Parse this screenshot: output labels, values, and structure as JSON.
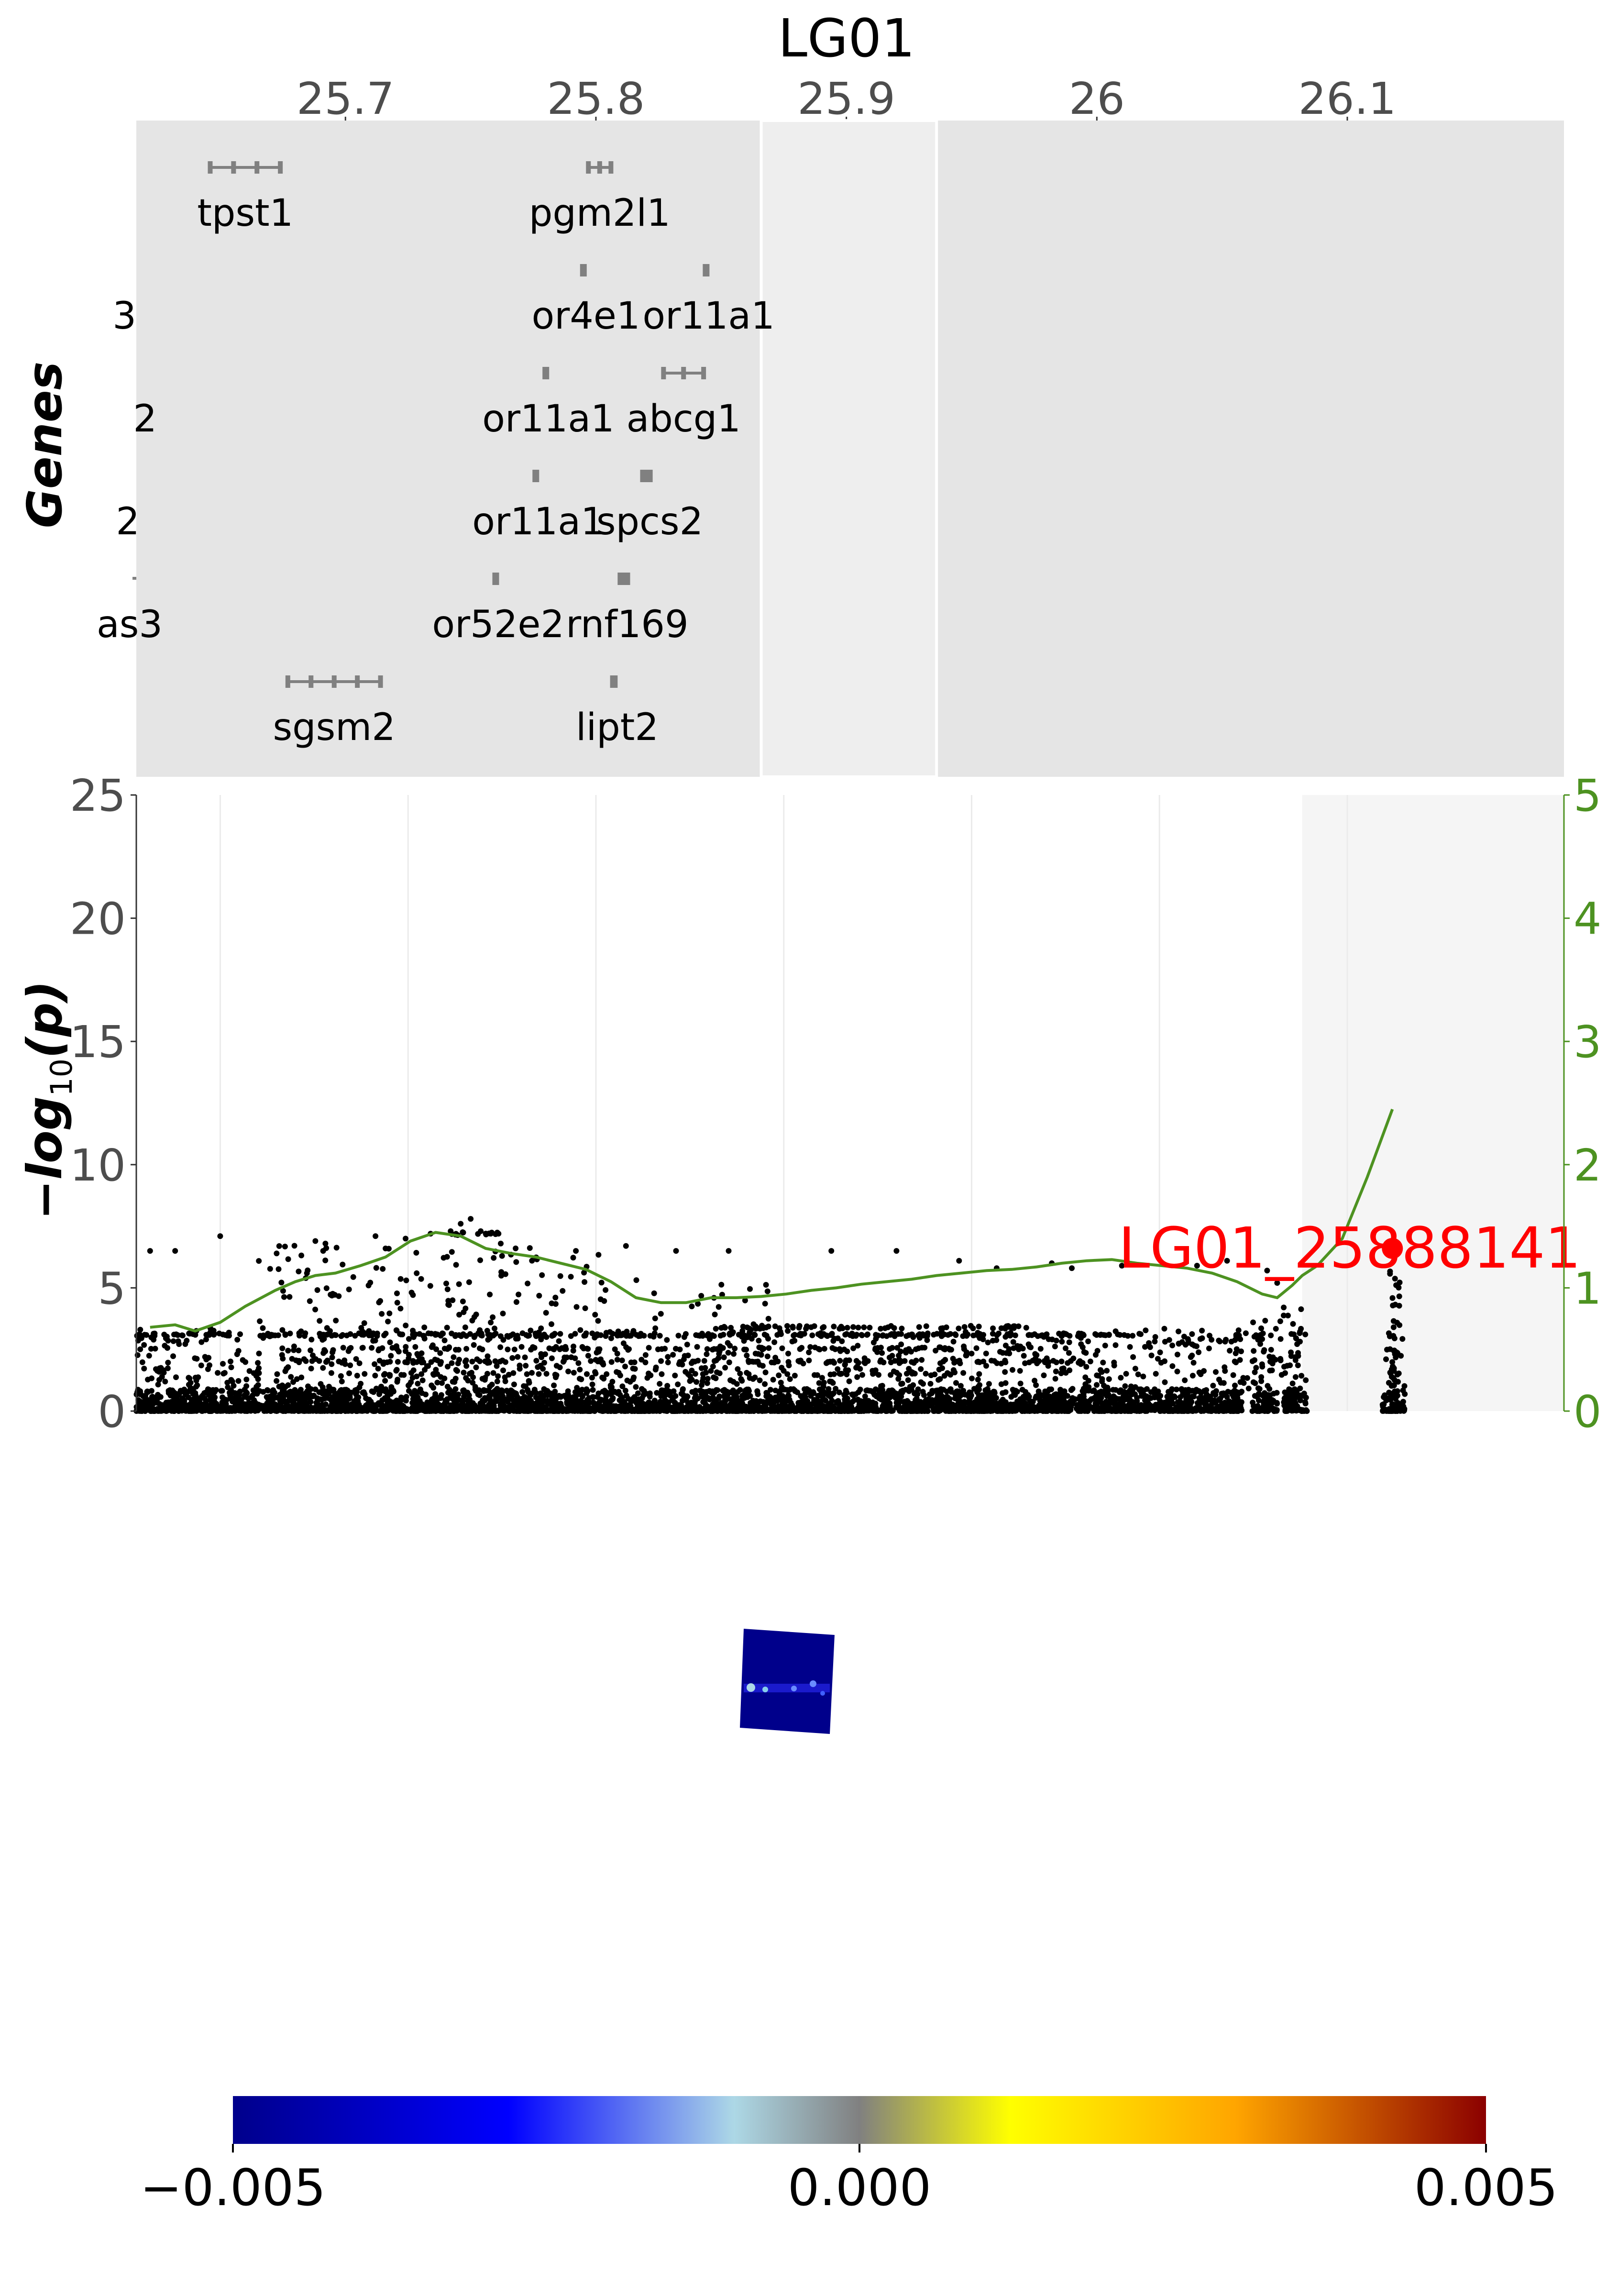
{
  "chart_data": [
    {
      "type": "gene-track",
      "title": "LG01",
      "ylabel": "Genes",
      "x_ticks": [
        "25.7",
        "25.8",
        "25.9",
        "26",
        "26.1"
      ],
      "x_tick_values": [
        25.7,
        25.8,
        25.9,
        26.0,
        26.1
      ],
      "xlim": [
        25.6165,
        26.1865
      ],
      "highlight_range": [
        25.866,
        25.936
      ],
      "genes": [
        {
          "name": "tpst1",
          "row": 0,
          "start": 25.646,
          "end": 25.674
        },
        {
          "name": "pgm2l1",
          "row": 0,
          "start": 25.797,
          "end": 25.806
        },
        {
          "name": "...3",
          "row": 1,
          "start": 25.6,
          "end": 25.605
        },
        {
          "name": "or4e1",
          "row": 1,
          "start": 25.795,
          "end": 25.797
        },
        {
          "name": "or11a1",
          "row": 1,
          "start": 25.844,
          "end": 25.846
        },
        {
          "name": "...2",
          "row": 2,
          "start": 25.6,
          "end": 25.605
        },
        {
          "name": "or11a1",
          "row": 2,
          "start": 25.78,
          "end": 25.782
        },
        {
          "name": "abcg1",
          "row": 2,
          "start": 25.827,
          "end": 25.843
        },
        {
          "name": "...2",
          "row": 3,
          "start": 25.6,
          "end": 25.605
        },
        {
          "name": "or11a1",
          "row": 3,
          "start": 25.776,
          "end": 25.778
        },
        {
          "name": "spcs2",
          "row": 3,
          "start": 25.819,
          "end": 25.824
        },
        {
          "name": "...as3",
          "row": 4,
          "start": 25.6,
          "end": 25.6165
        },
        {
          "name": "or52e2",
          "row": 4,
          "start": 25.76,
          "end": 25.762
        },
        {
          "name": "rnf169",
          "row": 4,
          "start": 25.81,
          "end": 25.815
        },
        {
          "name": "sgsm2",
          "row": 5,
          "start": 25.677,
          "end": 25.714
        },
        {
          "name": "lipt2",
          "row": 5,
          "start": 25.807,
          "end": 25.81
        }
      ],
      "gene_labels_clipped": [
        {
          "text": "3",
          "row": 1
        },
        {
          "text": "2",
          "row": 2
        },
        {
          "text": "2",
          "row": 3
        },
        {
          "text": "as3",
          "row": 4
        }
      ]
    },
    {
      "type": "scatter",
      "ylabel": "−log10(p)",
      "ylabel_parts": {
        "prefix": "−log",
        "sub": "10",
        "suffix": "(p)"
      },
      "ylim": [
        0,
        25
      ],
      "y_ticks": [
        "0",
        "5",
        "10",
        "15",
        "20",
        "25"
      ],
      "y_tick_values": [
        0,
        5,
        10,
        15,
        20,
        25
      ],
      "y2lim": [
        0,
        5
      ],
      "y2_ticks": [
        "0",
        "1",
        "2",
        "3",
        "4",
        "5"
      ],
      "y2_tick_values": [
        0,
        1,
        2,
        3,
        4,
        5
      ],
      "xlim": [
        25.6165,
        26.1865
      ],
      "grid": true,
      "shaded_range": [
        26.082,
        26.1865
      ],
      "lead_snp": {
        "label": "LG01_25888141",
        "x": 26.118,
        "y": 6.6
      },
      "recombination_line": {
        "x": [
          25.622,
          25.632,
          25.64,
          25.65,
          25.66,
          25.672,
          25.68,
          25.688,
          25.696,
          25.706,
          25.716,
          25.726,
          25.736,
          25.746,
          25.756,
          25.766,
          25.776,
          25.786,
          25.796,
          25.806,
          25.816,
          25.826,
          25.836,
          25.846,
          25.856,
          25.866,
          25.876,
          25.886,
          25.896,
          25.906,
          25.916,
          25.926,
          25.936,
          25.946,
          25.956,
          25.966,
          25.976,
          25.986,
          25.996,
          26.006,
          26.016,
          26.026,
          26.036,
          26.046,
          26.056,
          26.066,
          26.072,
          26.078,
          26.082,
          26.088,
          26.098,
          26.108,
          26.118
        ],
        "y": [
          0.68,
          0.7,
          0.65,
          0.72,
          0.85,
          0.98,
          1.05,
          1.1,
          1.12,
          1.18,
          1.25,
          1.38,
          1.45,
          1.42,
          1.32,
          1.28,
          1.25,
          1.2,
          1.15,
          1.05,
          0.92,
          0.88,
          0.88,
          0.92,
          0.92,
          0.93,
          0.95,
          0.98,
          1.0,
          1.03,
          1.05,
          1.07,
          1.1,
          1.12,
          1.14,
          1.15,
          1.17,
          1.2,
          1.22,
          1.23,
          1.2,
          1.18,
          1.16,
          1.12,
          1.05,
          0.95,
          0.92,
          1.02,
          1.1,
          1.18,
          1.4,
          1.9,
          2.45
        ]
      }
    },
    {
      "type": "colorbar",
      "colormap": [
        "#00008b",
        "#0000ff",
        "#add8e6",
        "#808080",
        "#ffff00",
        "#ffa500",
        "#8b0000"
      ],
      "ticks": [
        "−0.005",
        "0.000",
        "0.005"
      ],
      "tick_values": [
        -0.005,
        0.0,
        0.005
      ]
    }
  ],
  "colors": {
    "panel_bg": "#e5e5e5",
    "highlight_bg": "#eeeeee",
    "gene": "#808080",
    "points": "#000000",
    "recomb_line": "#4d9221",
    "lead_snp": "#ff0000",
    "axis_text": "#4d4d4d",
    "shade": "#f5f5f5"
  }
}
